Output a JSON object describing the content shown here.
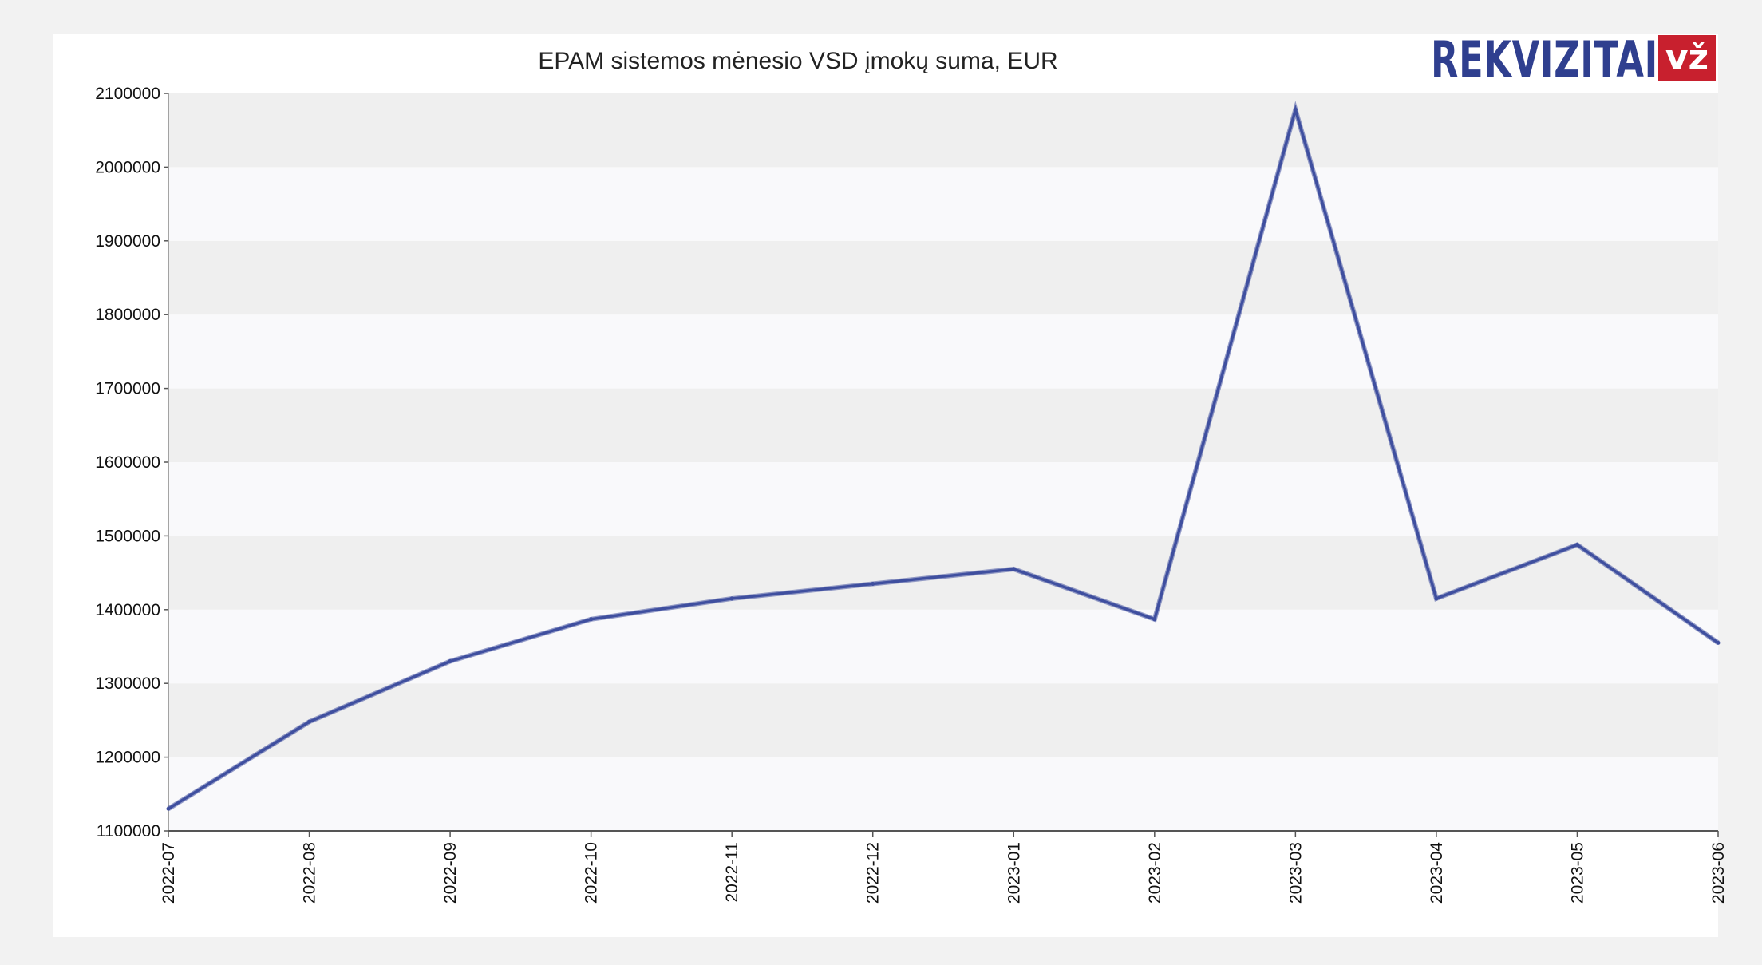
{
  "chart_data": {
    "type": "line",
    "title": "EPAM sistemos mėnesio VSD įmokų suma, EUR",
    "xlabel": "",
    "ylabel": "",
    "categories": [
      "2022-07",
      "2022-08",
      "2022-09",
      "2022-10",
      "2022-11",
      "2022-12",
      "2023-01",
      "2023-02",
      "2023-03",
      "2023-04",
      "2023-05",
      "2023-06"
    ],
    "series": [
      {
        "values": [
          1130000,
          1248000,
          1330000,
          1387000,
          1415000,
          1435000,
          1455000,
          1387000,
          2078000,
          1415000,
          1488000,
          1355000
        ],
        "color": "#3f4f9f"
      }
    ],
    "yticks": [
      "1100000",
      "1200000",
      "1300000",
      "1400000",
      "1500000",
      "1600000",
      "1700000",
      "1800000",
      "1900000",
      "2000000",
      "2100000"
    ],
    "ylim": [
      1100000,
      2100000
    ],
    "grid": "alternating horizontal bands",
    "band_colors": [
      "#f9f9fb",
      "#efefef"
    ]
  },
  "logo": {
    "text": "REKVIZITAI",
    "badge": "vž",
    "text_color": "#2f3f8f",
    "badge_color": "#c8202e"
  }
}
